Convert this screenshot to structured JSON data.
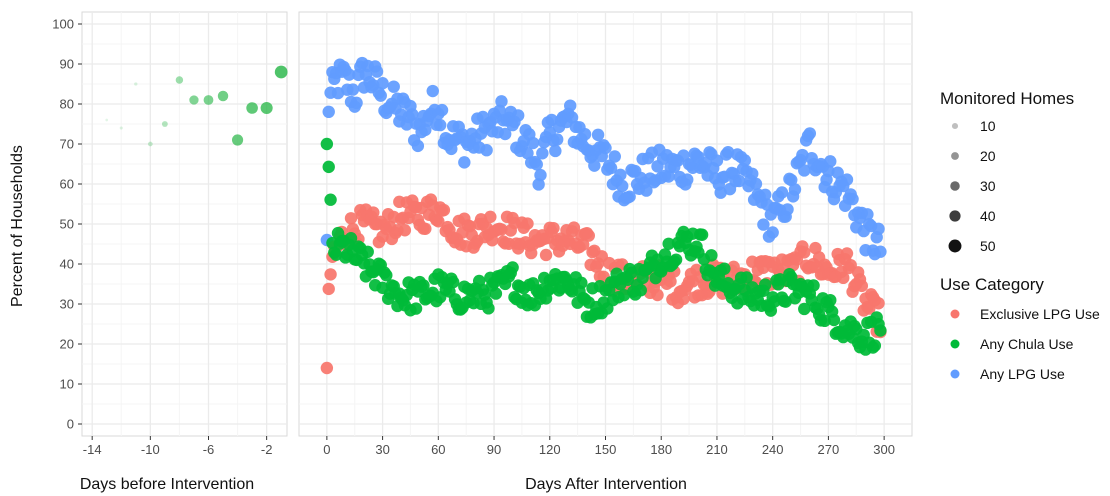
{
  "chart_data": {
    "type": "scatter",
    "ylabel": "Percent of Households",
    "y_ticks": [
      "0",
      "10",
      "20",
      "30",
      "40",
      "50",
      "60",
      "70",
      "80",
      "90",
      "100"
    ],
    "ylim": [
      -3,
      103
    ],
    "grid": true,
    "legend_position": "right",
    "panels": [
      {
        "xlabel": "Days before Intervention",
        "xlim": [
          -14.7,
          -0.6
        ],
        "x_ticks": [
          "-14",
          "-10",
          "-6",
          "-2"
        ],
        "x_tick_values": [
          -14,
          -10,
          -6,
          -2
        ],
        "points": {
          "Any Chula Use": [
            {
              "x": -13,
              "y": 76,
              "n": 1
            },
            {
              "x": -12,
              "y": 74,
              "n": 3
            },
            {
              "x": -11,
              "y": 85,
              "n": 4
            },
            {
              "x": -10,
              "y": 70,
              "n": 10
            },
            {
              "x": -9,
              "y": 75,
              "n": 15
            },
            {
              "x": -8,
              "y": 86,
              "n": 22
            },
            {
              "x": -7,
              "y": 81,
              "n": 30
            },
            {
              "x": -6,
              "y": 81,
              "n": 32
            },
            {
              "x": -5,
              "y": 82,
              "n": 35
            },
            {
              "x": -4,
              "y": 71,
              "n": 38
            },
            {
              "x": -3,
              "y": 79,
              "n": 40
            },
            {
              "x": -2,
              "y": 79,
              "n": 42
            },
            {
              "x": -1,
              "y": 88,
              "n": 45
            }
          ]
        }
      },
      {
        "xlabel": "Days After Intervention",
        "xlim": [
          -15,
          315
        ],
        "x_ticks": [
          "0",
          "30",
          "60",
          "90",
          "120",
          "150",
          "180",
          "210",
          "240",
          "270",
          "300"
        ],
        "x_tick_values": [
          0,
          30,
          60,
          90,
          120,
          150,
          180,
          210,
          240,
          270,
          300
        ],
        "series": [
          {
            "name": "Any LPG Use",
            "key": "lpg",
            "knots": [
              [
                0,
                46
              ],
              [
                1,
                80
              ],
              [
                5,
                86
              ],
              [
                10,
                86
              ],
              [
                15,
                82
              ],
              [
                20,
                88
              ],
              [
                25,
                86
              ],
              [
                30,
                82
              ],
              [
                40,
                78
              ],
              [
                45,
                76
              ],
              [
                50,
                73
              ],
              [
                55,
                78
              ],
              [
                60,
                80
              ],
              [
                65,
                72
              ],
              [
                75,
                70
              ],
              [
                85,
                73
              ],
              [
                95,
                76
              ],
              [
                105,
                72
              ],
              [
                115,
                64
              ],
              [
                120,
                72
              ],
              [
                130,
                76
              ],
              [
                140,
                70
              ],
              [
                150,
                66
              ],
              [
                160,
                60
              ],
              [
                170,
                62
              ],
              [
                180,
                64
              ],
              [
                190,
                64
              ],
              [
                200,
                66
              ],
              [
                210,
                62
              ],
              [
                220,
                64
              ],
              [
                230,
                58
              ],
              [
                240,
                50
              ],
              [
                250,
                58
              ],
              [
                260,
                70
              ],
              [
                270,
                62
              ],
              [
                280,
                58
              ],
              [
                290,
                48
              ],
              [
                298,
                44
              ]
            ],
            "amp": 5
          },
          {
            "name": "Exclusive LPG Use",
            "key": "excl",
            "knots": [
              [
                0,
                14
              ],
              [
                1,
                30
              ],
              [
                3,
                42
              ],
              [
                10,
                48
              ],
              [
                20,
                50
              ],
              [
                30,
                48
              ],
              [
                40,
                52
              ],
              [
                50,
                52
              ],
              [
                60,
                54
              ],
              [
                70,
                48
              ],
              [
                80,
                48
              ],
              [
                90,
                50
              ],
              [
                100,
                48
              ],
              [
                110,
                46
              ],
              [
                120,
                46
              ],
              [
                130,
                46
              ],
              [
                140,
                44
              ],
              [
                150,
                38
              ],
              [
                160,
                36
              ],
              [
                170,
                36
              ],
              [
                180,
                36
              ],
              [
                190,
                34
              ],
              [
                200,
                36
              ],
              [
                210,
                36
              ],
              [
                220,
                36
              ],
              [
                230,
                38
              ],
              [
                240,
                38
              ],
              [
                250,
                38
              ],
              [
                260,
                42
              ],
              [
                270,
                38
              ],
              [
                280,
                40
              ],
              [
                290,
                30
              ],
              [
                298,
                26
              ]
            ],
            "amp": 4
          },
          {
            "name": "Any Chula Use",
            "key": "chula",
            "knots": [
              [
                0,
                70
              ],
              [
                1,
                62
              ],
              [
                3,
                44
              ],
              [
                10,
                44
              ],
              [
                20,
                40
              ],
              [
                30,
                36
              ],
              [
                40,
                32
              ],
              [
                50,
                32
              ],
              [
                60,
                34
              ],
              [
                70,
                32
              ],
              [
                80,
                32
              ],
              [
                90,
                33
              ],
              [
                100,
                36
              ],
              [
                110,
                32
              ],
              [
                120,
                36
              ],
              [
                130,
                36
              ],
              [
                140,
                30
              ],
              [
                150,
                32
              ],
              [
                160,
                36
              ],
              [
                170,
                36
              ],
              [
                180,
                42
              ],
              [
                190,
                45
              ],
              [
                200,
                46
              ],
              [
                210,
                36
              ],
              [
                220,
                34
              ],
              [
                230,
                32
              ],
              [
                240,
                32
              ],
              [
                250,
                34
              ],
              [
                260,
                32
              ],
              [
                270,
                28
              ],
              [
                280,
                24
              ],
              [
                290,
                22
              ],
              [
                298,
                24
              ]
            ],
            "amp": 4
          }
        ]
      }
    ],
    "legend": {
      "size_title": "Monitored Homes",
      "size_labels": [
        "10",
        "20",
        "30",
        "40",
        "50"
      ],
      "color_title": "Use Category",
      "color_entries": [
        {
          "label": "Exclusive LPG Use",
          "color": "#F8766D"
        },
        {
          "label": "Any Chula Use",
          "color": "#00BA38"
        },
        {
          "label": "Any LPG Use",
          "color": "#619CFF"
        }
      ]
    },
    "colors": {
      "panel_bg": "#FFFFFF",
      "panel_border": "#D9D9D9",
      "grid_major": "#EBEBEB",
      "grid_minor": "#F5F5F5",
      "excl": "#F8766D",
      "chula": "#00BA38",
      "lpg": "#619CFF",
      "chula_pre": "#2DB84C"
    }
  }
}
